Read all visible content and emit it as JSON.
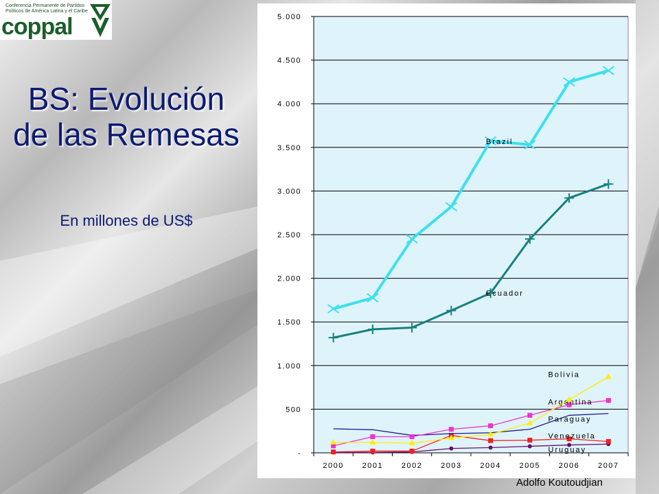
{
  "logo": {
    "small_text": "Conferencia Permanente de Partidos Políticos de América Latina y el Caribe",
    "name": "coppal"
  },
  "slide": {
    "title": "BS: Evolución de las Remesas",
    "subtitle": "En millones de US$",
    "author": "Adolfo Koutoudjian"
  },
  "colors": {
    "title": "#0d1a73",
    "plot_background": "#dff3fb"
  },
  "chart_data": {
    "type": "line",
    "x": [
      "2000",
      "2001",
      "2002",
      "2003",
      "2004",
      "2005",
      "2006",
      "2007"
    ],
    "ylim": [
      0,
      5000
    ],
    "yticks": [
      {
        "value": 0,
        "label": "-"
      },
      {
        "value": 500,
        "label": "500"
      },
      {
        "value": 1000,
        "label": "1.000"
      },
      {
        "value": 1500,
        "label": "1.500"
      },
      {
        "value": 2000,
        "label": "2.000"
      },
      {
        "value": 2500,
        "label": "2.500"
      },
      {
        "value": 3000,
        "label": "3.000"
      },
      {
        "value": 3500,
        "label": "3.500"
      },
      {
        "value": 4000,
        "label": "4.000"
      },
      {
        "value": 4500,
        "label": "4.500"
      },
      {
        "value": 5000,
        "label": "5.000"
      }
    ],
    "grid": "horizontal",
    "series": [
      {
        "name": "Brazil",
        "color": "#3de0ee",
        "marker": "x",
        "values": [
          1650,
          1775,
          2450,
          2820,
          3575,
          3530,
          4250,
          4380
        ],
        "label_at": {
          "x": "2004",
          "y": 3570
        }
      },
      {
        "name": "Ecuador",
        "color": "#17807e",
        "marker": "plus",
        "values": [
          1320,
          1415,
          1435,
          1630,
          1830,
          2450,
          2920,
          3080
        ],
        "label_at": {
          "x": "2004",
          "y": 1830
        }
      },
      {
        "name": "Bolivia",
        "color": "#ffee00",
        "marker": "triangle",
        "values": [
          120,
          120,
          110,
          170,
          210,
          340,
          610,
          870
        ],
        "label_at": {
          "x": "2006",
          "y": 900
        }
      },
      {
        "name": "Argentina",
        "color": "#ee33cc",
        "marker": "square",
        "values": [
          80,
          185,
          185,
          270,
          310,
          430,
          550,
          600
        ],
        "label_at": {
          "x": "2006",
          "y": 585
        }
      },
      {
        "name": "Paraguay",
        "color": "#1a1a8c",
        "marker": "line",
        "values": [
          275,
          265,
          200,
          220,
          230,
          270,
          430,
          450
        ],
        "label_at": {
          "x": "2006",
          "y": 390
        }
      },
      {
        "name": "Venezuela",
        "color": "#ee2222",
        "marker": "square",
        "values": [
          10,
          20,
          20,
          200,
          140,
          145,
          160,
          130
        ],
        "label_at": {
          "x": "2006",
          "y": 195
        }
      },
      {
        "name": "Uruguay",
        "color": "#6a0d6a",
        "marker": "circle",
        "values": [
          5,
          5,
          10,
          50,
          60,
          75,
          90,
          100
        ],
        "label_at": {
          "x": "2006",
          "y": 40
        }
      }
    ]
  }
}
